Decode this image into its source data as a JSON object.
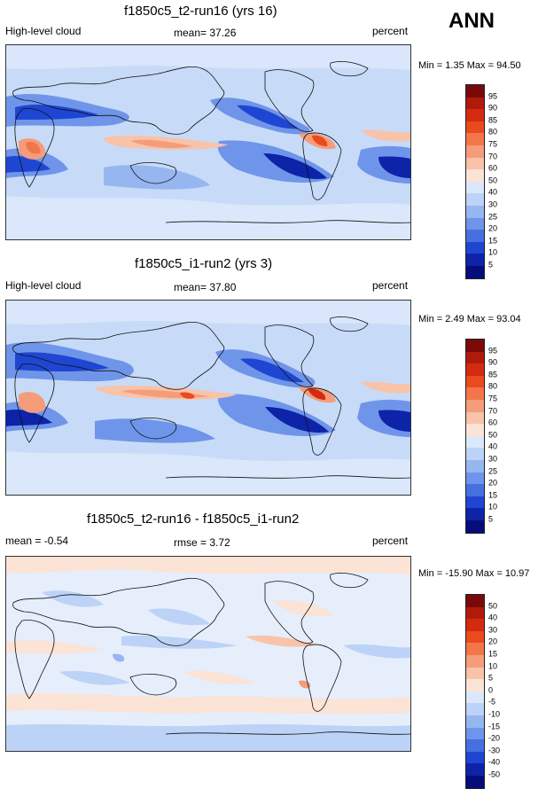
{
  "season": "ANN",
  "panels": [
    {
      "title": "f1850c5_t2-run16 (yrs 16)",
      "left_label": "High-level cloud",
      "center_label": "mean=  37.26",
      "units": "percent",
      "min_label": "Min =",
      "min_value": "1.35",
      "max_label": "Max =",
      "max_value": "94.50",
      "levels": [
        "95",
        "90",
        "85",
        "80",
        "75",
        "70",
        "60",
        "50",
        "40",
        "30",
        "25",
        "20",
        "15",
        "10",
        "5"
      ]
    },
    {
      "title": "f1850c5_i1-run2 (yrs 3)",
      "left_label": "High-level cloud",
      "center_label": "mean=  37.80",
      "units": "percent",
      "min_label": "Min =",
      "min_value": "2.49",
      "max_label": "Max =",
      "max_value": "93.04",
      "levels": [
        "95",
        "90",
        "85",
        "80",
        "75",
        "70",
        "60",
        "50",
        "40",
        "30",
        "25",
        "20",
        "15",
        "10",
        "5"
      ]
    },
    {
      "title": "f1850c5_t2-run16 - f1850c5_i1-run2",
      "left_label": "mean =  -0.54",
      "center_label": "rmse =   3.72",
      "units": "percent",
      "min_label": "Min =",
      "min_value": "-15.90",
      "max_label": "Max =",
      "max_value": "10.97",
      "levels": [
        "50",
        "40",
        "30",
        "20",
        "15",
        "10",
        "5",
        "0",
        "-5",
        "-10",
        "-15",
        "-20",
        "-30",
        "-40",
        "-50"
      ]
    }
  ],
  "colors": {
    "scale": [
      "#7a0a0a",
      "#b01a0a",
      "#d42a10",
      "#ea4a1c",
      "#f3764a",
      "#f59c7a",
      "#f8c3a8",
      "#fbe3d5",
      "#dbe8fb",
      "#bcd3f7",
      "#96b6f0",
      "#6f95ea",
      "#466fe0",
      "#1f46d2",
      "#0d23a8",
      "#060d7a"
    ],
    "ocean_base": "#cfe0fb",
    "map_bg": "#bdd4f6",
    "coast": "#111111"
  }
}
